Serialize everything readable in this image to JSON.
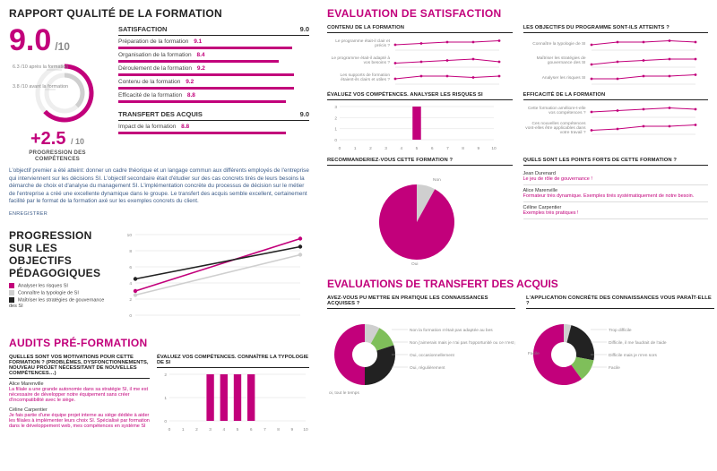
{
  "colors": {
    "magenta": "#c2007b",
    "grey": "#cfcfcf",
    "grid": "#e4e4e4",
    "blue_text": "#3b5b88",
    "green": "#7fbf5a",
    "cyan": "#5bc0de",
    "dark": "#222222"
  },
  "left": {
    "title": "RAPPORT QUALITÉ DE LA FORMATION",
    "score": {
      "value": "9.0",
      "denom": "/10"
    },
    "satisfaction": {
      "heading": "SATISFACTION",
      "heading_score": "9.0",
      "max": 10,
      "bar_color": "#c2007b",
      "items": [
        {
          "label": "Préparation de la formation",
          "value": 9.1
        },
        {
          "label": "Organisation de la formation",
          "value": 8.4
        },
        {
          "label": "Déroulement de la formation",
          "value": 9.2
        },
        {
          "label": "Contenu de la formation",
          "value": 9.2
        },
        {
          "label": "Efficacité de la formation",
          "value": 8.8
        }
      ]
    },
    "transfer": {
      "heading": "TRANSFERT DES ACQUIS",
      "heading_score": "9.0",
      "items": [
        {
          "label": "Impact de la formation",
          "value": 8.8
        }
      ]
    },
    "ring": {
      "after_label": "6.3 /10 après la formation",
      "before_label": "3.8 /10 avant la formation",
      "after_value": 6.3,
      "before_value": 3.8,
      "progression_value": "+2.5",
      "progression_denom": "/ 10",
      "progression_label": "PROGRESSION DES COMPÉTENCES"
    },
    "paragraph": "L'objectif premier a été atteint: donner un cadre théorique et un langage commun aux différents employés de l'entreprise qui interviennent sur les décisions SI. L'objectif secondaire était d'étudier sur des cas concrets tirés de leurs besoins la démarche de choix et d'analyse du management SI. L'implémentation concrète du processus de décision sur le métier de l'entreprise a créé une excellente dynamique dans le groupe. Le transfert des acquis semble excellent, certainement facilité par le format de la formation axé sur les exemples concrets du client.",
    "save": "ENREGISTRER",
    "pedag": {
      "title_lines": [
        "PROGRESSION",
        "SUR LES OBJECTIFS",
        "PÉDAGOGIQUES"
      ],
      "legend": [
        {
          "color": "#c2007b",
          "label": "Analyser les risques SI"
        },
        {
          "color": "#cfcfcf",
          "label": "Connaître la typologie de SI"
        },
        {
          "color": "#222222",
          "label": "Maîtriser les stratégies de gouvernance des SI"
        }
      ],
      "series": [
        {
          "color": "#c2007b",
          "y": [
            3.0,
            9.5
          ]
        },
        {
          "color": "#cfcfcf",
          "y": [
            2.5,
            7.5
          ]
        },
        {
          "color": "#222222",
          "y": [
            4.5,
            8.5
          ]
        }
      ],
      "ylim": [
        0,
        10
      ]
    },
    "audits": {
      "title": "AUDITS PRÉ-FORMATION",
      "q1": "QUELLES SONT VOS MOTIVATIONS POUR CETTE FORMATION ? (PROBLÈMES, DYSFONCTIONNEMENTS, NOUVEAU PROJET NÉCESSITANT DE NOUVELLES COMPÉTENCES…)",
      "q2": "ÉVALUEZ VOS COMPÉTENCES. CONNAÎTRE LA TYPOLOGIE DE SI",
      "comments": [
        {
          "author": "Alice Marenville",
          "text": "La filiale a une grande autonomie dans sa stratégie SI, il me est nécessaire de développer notre équipement sans créer d'incompatibilité avec le siège."
        },
        {
          "author": "Céline Carpentier",
          "text": "Je fais partie d'une équipe projet interne au siège dédiée à aider les filiales à implémenter leurs choix SI. Spécialisé par formation dans le développement web, mes compétences en système SI"
        }
      ],
      "histogram": {
        "type": "bar",
        "x": [
          0,
          1,
          2,
          3,
          4,
          5,
          6,
          7,
          8,
          9,
          10
        ],
        "values": [
          0,
          0,
          0,
          2,
          2,
          2,
          2,
          0,
          0,
          0,
          0
        ],
        "bar_color": "#c2007b",
        "ylim": [
          0,
          2
        ],
        "bar_width": 0.55
      }
    }
  },
  "right": {
    "title": "EVALUATION DE SATISFACTION",
    "panels": [
      {
        "heading": "CONTENU DE LA FORMATION",
        "rows": [
          {
            "label": "Le programme était-il clair et précis ?",
            "y": [
              8,
              8.5,
              9,
              9,
              9.5
            ]
          },
          {
            "label": "Le programme était-il adapté à vos besoins ?",
            "y": [
              7.5,
              8,
              8.5,
              9,
              8
            ]
          },
          {
            "label": "Les supports de formation étaient-ils clairs et utiles ?",
            "y": [
              8,
              9,
              9,
              8.5,
              9
            ]
          }
        ],
        "xlim": [
          0,
          10
        ],
        "ylim": [
          6,
          10
        ],
        "color": "#c2007b"
      },
      {
        "heading": "LES OBJECTIFS DU PROGRAMME SONT-ILS ATTEINTS ?",
        "rows": [
          {
            "label": "Connaître la typologie de SI",
            "y": [
              8,
              9,
              9,
              9.5,
              9
            ]
          },
          {
            "label": "Maîtriser les stratégies de gouvernance des SI",
            "y": [
              7,
              8,
              8.5,
              9,
              9
            ]
          },
          {
            "label": "Analyser les risques SI",
            "y": [
              8,
              8,
              9,
              9,
              9.5
            ]
          }
        ],
        "xlim": [
          0,
          10
        ],
        "ylim": [
          6,
          10
        ],
        "color": "#c2007b"
      },
      {
        "heading": "ÉVALUEZ VOS COMPÉTENCES. ANALYSER LES RISQUES SI",
        "histogram": {
          "x": [
            0,
            1,
            2,
            3,
            4,
            5,
            6,
            7,
            8,
            9,
            10
          ],
          "values": [
            0,
            0,
            0,
            0,
            0,
            3,
            0,
            0,
            0,
            0,
            0
          ],
          "bar_color": "#c2007b",
          "ylim": [
            0,
            3
          ]
        }
      },
      {
        "heading": "EFFICACITÉ DE LA FORMATION",
        "rows": [
          {
            "label": "Cette formation améliore-t-elle vos compétences ?",
            "y": [
              8,
              8.5,
              9,
              9.5,
              9
            ]
          },
          {
            "label": "Ces nouvelles compétences vont-elles être applicables dans votre travail ?",
            "y": [
              7.5,
              8,
              9,
              9,
              9.5
            ]
          }
        ],
        "xlim": [
          0,
          10
        ],
        "ylim": [
          6,
          10
        ],
        "color": "#c2007b"
      }
    ],
    "recommend": {
      "heading": "RECOMMANDERIEZ-VOUS CETTE FORMATION ?",
      "pie": {
        "yes": 0.92,
        "no": 0.08,
        "yes_color": "#c2007b",
        "no_color": "#cfcfcf",
        "yes_label": "Oui",
        "no_label": "Non"
      }
    },
    "strengths": {
      "heading": "QUELS SONT LES POINTS FORTS DE CETTE FORMATION ?",
      "items": [
        {
          "author": "Jean Durenard",
          "text": "Le jeu de rôle de gouvernance !"
        },
        {
          "author": "Alice Marenville",
          "text": "Formateur très dynamique. Exemples tirés systématiquement de notre besoin."
        },
        {
          "author": "Céline Carpentier",
          "text": "Exemples très pratiques !"
        }
      ]
    },
    "transfer_title": "EVALUATIONS DE TRANSFERT DES ACQUIS",
    "practice": {
      "heading": "AVEZ-VOUS PU METTRE EN PRATIQUE LES CONNAISSANCES ACQUISES ?",
      "donut": {
        "slices": [
          {
            "label": "Non la formation n'était pas adaptée au bes",
            "value": 0.08,
            "color": "#cfcfcf"
          },
          {
            "label": "Non j'aimerais mais je n'ai pas l'opportunité ou ce n'est pas de",
            "value": 0.12,
            "color": "#7fbf5a"
          },
          {
            "label": "Oui, occasionnellement",
            "value": 0.3,
            "color": "#222222"
          },
          {
            "label": "Oui, régulièrement",
            "value": 0.5,
            "color": "#c2007b"
          }
        ],
        "center_label": "oi, tout le temps"
      }
    },
    "application": {
      "heading": "L'APPLICATION CONCRÈTE DES CONNAISSANCES VOUS PARAÎT-ELLE ?",
      "donut": {
        "slices": [
          {
            "label": "Trop difficile",
            "value": 0.04,
            "color": "#cfcfcf"
          },
          {
            "label": "Difficile, il me faudrait de l'aide",
            "value": 0.24,
            "color": "#222222"
          },
          {
            "label": "Difficile mais je m'en sors",
            "value": 0.12,
            "color": "#7fbf5a"
          },
          {
            "label": "Facile",
            "value": 0.6,
            "color": "#c2007b"
          }
        ]
      },
      "left_label": "Facile"
    }
  }
}
